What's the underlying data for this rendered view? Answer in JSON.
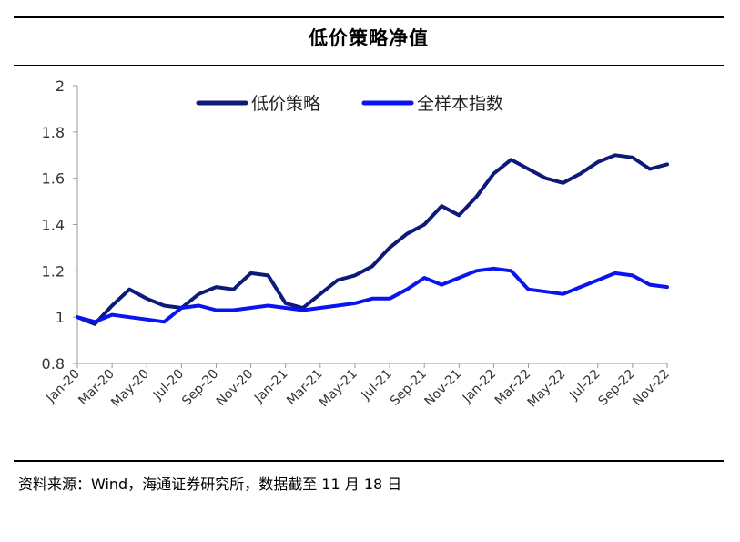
{
  "title": "低价策略净值",
  "source": "资料来源：Wind，海通证券研究所，数据截至 11 月 18 日",
  "chart_data": {
    "type": "line",
    "title": "低价策略净值",
    "xlabel": "",
    "ylabel": "",
    "ylim": [
      0.8,
      2
    ],
    "yticks": [
      "0.8",
      "1",
      "1.2",
      "1.4",
      "1.6",
      "1.8",
      "2"
    ],
    "xticks": [
      "Jan-20",
      "Mar-20",
      "May-20",
      "Jul-20",
      "Sep-20",
      "Nov-20",
      "Jan-21",
      "Mar-21",
      "May-21",
      "Jul-21",
      "Sep-21",
      "Nov-21",
      "Jan-22",
      "Mar-22",
      "May-22",
      "Jul-22",
      "Sep-22",
      "Nov-22"
    ],
    "x": [
      "Jan-20",
      "Feb-20",
      "Mar-20",
      "Apr-20",
      "May-20",
      "Jun-20",
      "Jul-20",
      "Aug-20",
      "Sep-20",
      "Oct-20",
      "Nov-20",
      "Dec-20",
      "Jan-21",
      "Feb-21",
      "Mar-21",
      "Apr-21",
      "May-21",
      "Jun-21",
      "Jul-21",
      "Aug-21",
      "Sep-21",
      "Oct-21",
      "Nov-21",
      "Dec-21",
      "Jan-22",
      "Feb-22",
      "Mar-22",
      "Apr-22",
      "May-22",
      "Jun-22",
      "Jul-22",
      "Aug-22",
      "Sep-22",
      "Oct-22",
      "Nov-22"
    ],
    "legend_position": "top",
    "grid": false,
    "series": [
      {
        "name": "低价策略",
        "color": "#0d1a7a",
        "values": [
          1.0,
          0.97,
          1.05,
          1.12,
          1.08,
          1.05,
          1.04,
          1.1,
          1.13,
          1.12,
          1.19,
          1.18,
          1.06,
          1.04,
          1.1,
          1.16,
          1.18,
          1.22,
          1.3,
          1.36,
          1.4,
          1.48,
          1.44,
          1.52,
          1.62,
          1.68,
          1.64,
          1.6,
          1.58,
          1.62,
          1.67,
          1.7,
          1.69,
          1.64,
          1.66
        ]
      },
      {
        "name": "全样本指数",
        "color": "#0a14f0",
        "values": [
          1.0,
          0.98,
          1.01,
          1.0,
          0.99,
          0.98,
          1.04,
          1.05,
          1.03,
          1.03,
          1.04,
          1.05,
          1.04,
          1.03,
          1.04,
          1.05,
          1.06,
          1.08,
          1.08,
          1.12,
          1.17,
          1.14,
          1.17,
          1.2,
          1.21,
          1.2,
          1.12,
          1.11,
          1.1,
          1.13,
          1.16,
          1.19,
          1.18,
          1.14,
          1.13
        ]
      }
    ]
  }
}
